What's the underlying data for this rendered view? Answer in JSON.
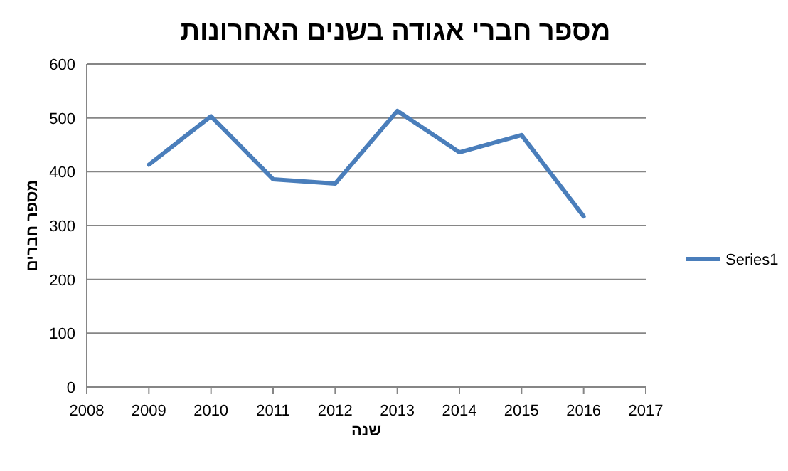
{
  "chart_data": {
    "type": "line",
    "title": "מספר חברי אגודה בשנים האחרונות",
    "xlabel": "שנה",
    "ylabel": "מספר חברים",
    "x": [
      2009,
      2010,
      2011,
      2012,
      2013,
      2014,
      2015,
      2016
    ],
    "series": [
      {
        "name": "Series1",
        "color": "#4a7ebb",
        "values": [
          413,
          503,
          386,
          378,
          513,
          436,
          468,
          317
        ]
      }
    ],
    "xlim": [
      2008,
      2017
    ],
    "xticks": [
      2008,
      2009,
      2010,
      2011,
      2012,
      2013,
      2014,
      2015,
      2016,
      2017
    ],
    "ylim": [
      0,
      600
    ],
    "yticks": [
      0,
      100,
      200,
      300,
      400,
      500,
      600
    ],
    "grid": "y",
    "legend": "right",
    "marker": "none",
    "line_style": "solid"
  }
}
